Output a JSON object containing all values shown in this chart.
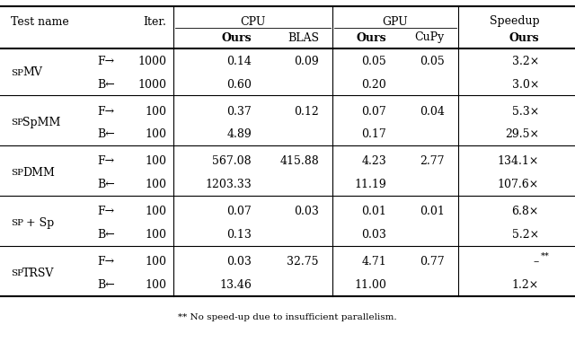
{
  "footnote": "** No speed-up due to insufficient parallelism.",
  "groups": [
    {
      "name_big": "S",
      "name_small": "P",
      "name_rest": "MV",
      "name_full": "SpMV",
      "rows": [
        {
          "dir": "F→",
          "iter": "1000",
          "cpu_ours": "0.14",
          "cpu_blas": "0.09",
          "gpu_ours": "0.05",
          "gpu_cupy": "0.05",
          "speedup": "3.2×",
          "speedup_sup": ""
        },
        {
          "dir": "B←",
          "iter": "1000",
          "cpu_ours": "0.60",
          "cpu_blas": "",
          "gpu_ours": "0.20",
          "gpu_cupy": "",
          "speedup": "3.0×",
          "speedup_sup": ""
        }
      ]
    },
    {
      "name_full": "SpSpMM",
      "rows": [
        {
          "dir": "F→",
          "iter": "100",
          "cpu_ours": "0.37",
          "cpu_blas": "0.12",
          "gpu_ours": "0.07",
          "gpu_cupy": "0.04",
          "speedup": "5.3×",
          "speedup_sup": ""
        },
        {
          "dir": "B←",
          "iter": "100",
          "cpu_ours": "4.89",
          "cpu_blas": "",
          "gpu_ours": "0.17",
          "gpu_cupy": "",
          "speedup": "29.5×",
          "speedup_sup": ""
        }
      ]
    },
    {
      "name_full": "SpDMM",
      "rows": [
        {
          "dir": "F→",
          "iter": "100",
          "cpu_ours": "567.08",
          "cpu_blas": "415.88",
          "gpu_ours": "4.23",
          "gpu_cupy": "2.77",
          "speedup": "134.1×",
          "speedup_sup": ""
        },
        {
          "dir": "B←",
          "iter": "100",
          "cpu_ours": "1203.33",
          "cpu_blas": "",
          "gpu_ours": "11.19",
          "gpu_cupy": "",
          "speedup": "107.6×",
          "speedup_sup": ""
        }
      ]
    },
    {
      "name_full": "Sp + Sp",
      "rows": [
        {
          "dir": "F→",
          "iter": "100",
          "cpu_ours": "0.07",
          "cpu_blas": "0.03",
          "gpu_ours": "0.01",
          "gpu_cupy": "0.01",
          "speedup": "6.8×",
          "speedup_sup": ""
        },
        {
          "dir": "B←",
          "iter": "100",
          "cpu_ours": "0.13",
          "cpu_blas": "",
          "gpu_ours": "0.03",
          "gpu_cupy": "",
          "speedup": "5.2×",
          "speedup_sup": ""
        }
      ]
    },
    {
      "name_full": "SpTRSV",
      "rows": [
        {
          "dir": "F→",
          "iter": "100",
          "cpu_ours": "0.03",
          "cpu_blas": "32.75",
          "gpu_ours": "4.71",
          "gpu_cupy": "0.77",
          "speedup": "–",
          "speedup_sup": "**"
        },
        {
          "dir": "B←",
          "iter": "100",
          "cpu_ours": "13.46",
          "cpu_blas": "",
          "gpu_ours": "11.00",
          "gpu_cupy": "",
          "speedup": "1.2×",
          "speedup_sup": ""
        }
      ]
    }
  ],
  "bg_color": "#ffffff",
  "line_color": "#000000",
  "text_color": "#000000",
  "fs": 9.0,
  "fs_small": 7.0,
  "fs_footnote": 7.5
}
